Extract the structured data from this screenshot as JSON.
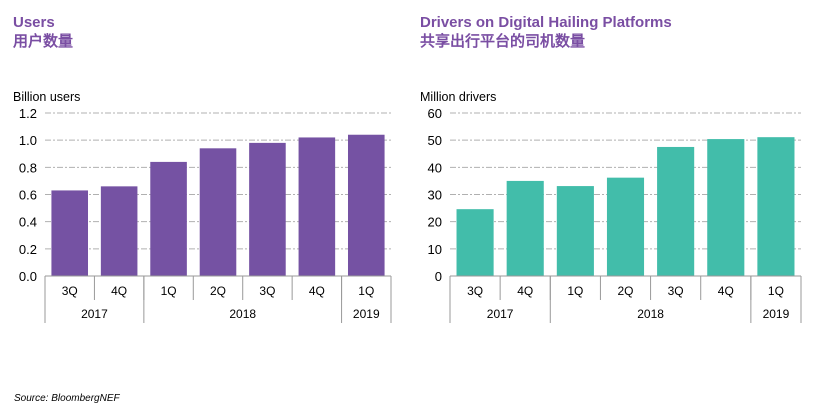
{
  "source": "Source: BloombergNEF",
  "chart_data": [
    {
      "type": "bar",
      "title": "Users",
      "subtitle": "用户数量",
      "ylabel": "Billion users",
      "ylim": [
        0,
        1.2
      ],
      "yticks": [
        "0.0",
        "0.2",
        "0.4",
        "0.6",
        "0.8",
        "1.0",
        "1.2"
      ],
      "categories": [
        "3Q",
        "4Q",
        "1Q",
        "2Q",
        "3Q",
        "4Q",
        "1Q"
      ],
      "groups": [
        {
          "label": "2017",
          "span": 2
        },
        {
          "label": "2018",
          "span": 4
        },
        {
          "label": "2019",
          "span": 1
        }
      ],
      "values": [
        0.63,
        0.66,
        0.84,
        0.94,
        0.98,
        1.02,
        1.04
      ],
      "color": "#7552a3",
      "grid": true
    },
    {
      "type": "bar",
      "title": "Drivers on Digital Hailing Platforms",
      "subtitle": "共享出行平台的司机数量",
      "ylabel": "Million drivers",
      "ylim": [
        0,
        60
      ],
      "yticks": [
        "0",
        "10",
        "20",
        "30",
        "40",
        "50",
        "60"
      ],
      "categories": [
        "3Q",
        "4Q",
        "1Q",
        "2Q",
        "3Q",
        "4Q",
        "1Q"
      ],
      "groups": [
        {
          "label": "2017",
          "span": 2
        },
        {
          "label": "2018",
          "span": 4
        },
        {
          "label": "2019",
          "span": 1
        }
      ],
      "values": [
        24.6,
        35.0,
        33.1,
        36.2,
        47.5,
        50.4,
        51.1
      ],
      "color": "#42bdaa",
      "grid": true
    }
  ]
}
